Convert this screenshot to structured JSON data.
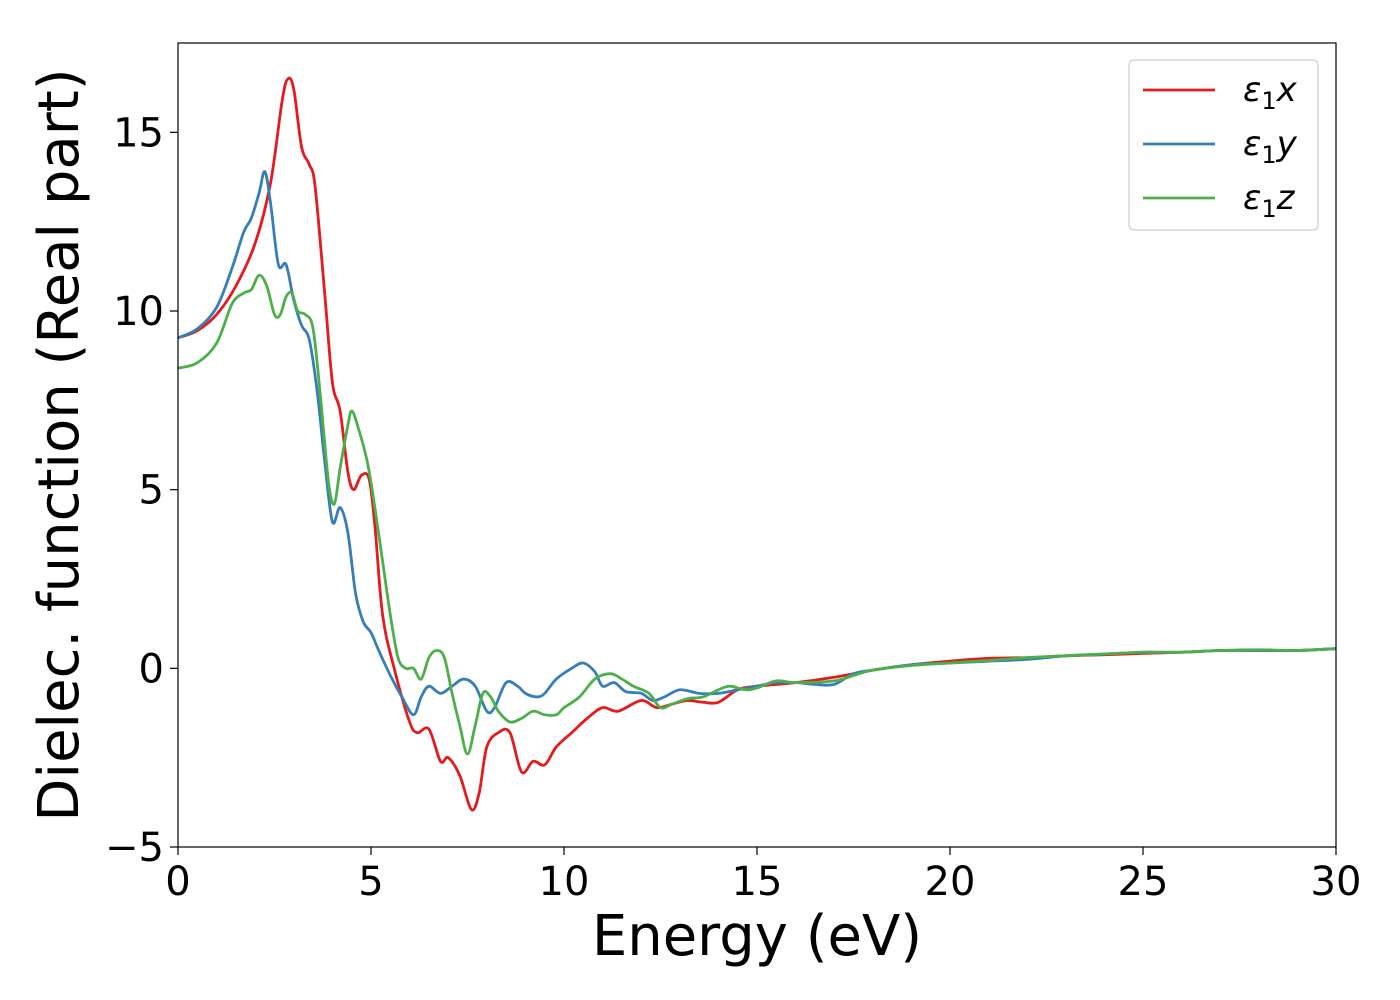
{
  "chart_data": {
    "type": "line",
    "xlabel": "Energy (eV)",
    "ylabel": "Dielec. function (Real part)",
    "xlim": [
      0,
      30
    ],
    "ylim": [
      -5,
      17.5
    ],
    "xticks": [
      0,
      5,
      10,
      15,
      20,
      25,
      30
    ],
    "xtick_labels": [
      "0",
      "5",
      "10",
      "15",
      "20",
      "25",
      "30"
    ],
    "yticks": [
      -5,
      0,
      5,
      10,
      15
    ],
    "ytick_labels": [
      "−5",
      "0",
      "5",
      "10",
      "15"
    ],
    "grid": false,
    "legend_position": "top-right",
    "series": [
      {
        "name": "ε1x",
        "legend_symbol": "ε",
        "legend_sub": "1",
        "legend_var": "x",
        "color": "#e41a1c",
        "points": [
          [
            0,
            9.25
          ],
          [
            0.5,
            9.45
          ],
          [
            1.0,
            9.9
          ],
          [
            1.5,
            10.7
          ],
          [
            2.0,
            11.9
          ],
          [
            2.4,
            13.6
          ],
          [
            2.7,
            15.9
          ],
          [
            2.85,
            16.5
          ],
          [
            3.0,
            16.2
          ],
          [
            3.2,
            14.6
          ],
          [
            3.4,
            14.1
          ],
          [
            3.55,
            13.5
          ],
          [
            3.8,
            10.5
          ],
          [
            4.0,
            8.0
          ],
          [
            4.2,
            7.2
          ],
          [
            4.4,
            5.5
          ],
          [
            4.55,
            5.0
          ],
          [
            4.75,
            5.4
          ],
          [
            4.95,
            5.3
          ],
          [
            5.1,
            4.0
          ],
          [
            5.3,
            1.5
          ],
          [
            5.6,
            0.0
          ],
          [
            6.0,
            -1.5
          ],
          [
            6.2,
            -1.8
          ],
          [
            6.5,
            -1.7
          ],
          [
            6.8,
            -2.6
          ],
          [
            7.0,
            -2.5
          ],
          [
            7.3,
            -3.0
          ],
          [
            7.6,
            -3.95
          ],
          [
            7.8,
            -3.5
          ],
          [
            8.0,
            -2.2
          ],
          [
            8.3,
            -1.8
          ],
          [
            8.6,
            -1.8
          ],
          [
            8.9,
            -2.9
          ],
          [
            9.2,
            -2.6
          ],
          [
            9.5,
            -2.7
          ],
          [
            9.8,
            -2.2
          ],
          [
            10.2,
            -1.8
          ],
          [
            10.6,
            -1.4
          ],
          [
            11.0,
            -1.1
          ],
          [
            11.4,
            -1.2
          ],
          [
            12.0,
            -0.9
          ],
          [
            12.4,
            -1.1
          ],
          [
            12.8,
            -1.0
          ],
          [
            13.2,
            -0.9
          ],
          [
            13.6,
            -0.95
          ],
          [
            14.0,
            -0.95
          ],
          [
            14.5,
            -0.6
          ],
          [
            15.0,
            -0.5
          ],
          [
            16.0,
            -0.4
          ],
          [
            17.0,
            -0.25
          ],
          [
            18.0,
            -0.05
          ],
          [
            19.0,
            0.1
          ],
          [
            20.0,
            0.2
          ],
          [
            21.0,
            0.28
          ],
          [
            22.0,
            0.3
          ],
          [
            23.0,
            0.35
          ],
          [
            24.0,
            0.38
          ],
          [
            25.0,
            0.42
          ],
          [
            26.0,
            0.45
          ],
          [
            27.0,
            0.5
          ],
          [
            28.0,
            0.5
          ],
          [
            29.0,
            0.5
          ],
          [
            30.0,
            0.55
          ]
        ]
      },
      {
        "name": "ε1y",
        "legend_symbol": "ε",
        "legend_sub": "1",
        "legend_var": "y",
        "color": "#377eb8",
        "points": [
          [
            0,
            9.25
          ],
          [
            0.5,
            9.5
          ],
          [
            1.0,
            10.1
          ],
          [
            1.4,
            11.2
          ],
          [
            1.7,
            12.2
          ],
          [
            1.9,
            12.6
          ],
          [
            2.1,
            13.3
          ],
          [
            2.25,
            13.9
          ],
          [
            2.4,
            13.0
          ],
          [
            2.6,
            11.3
          ],
          [
            2.8,
            11.3
          ],
          [
            3.0,
            10.3
          ],
          [
            3.2,
            9.6
          ],
          [
            3.4,
            9.2
          ],
          [
            3.6,
            7.8
          ],
          [
            3.8,
            5.8
          ],
          [
            4.0,
            4.1
          ],
          [
            4.2,
            4.5
          ],
          [
            4.4,
            3.8
          ],
          [
            4.6,
            2.1
          ],
          [
            4.8,
            1.3
          ],
          [
            5.0,
            1.0
          ],
          [
            5.2,
            0.5
          ],
          [
            5.5,
            -0.2
          ],
          [
            5.8,
            -0.8
          ],
          [
            6.1,
            -1.3
          ],
          [
            6.3,
            -0.8
          ],
          [
            6.5,
            -0.5
          ],
          [
            6.8,
            -0.7
          ],
          [
            7.1,
            -0.5
          ],
          [
            7.4,
            -0.3
          ],
          [
            7.7,
            -0.5
          ],
          [
            8.0,
            -1.2
          ],
          [
            8.2,
            -1.1
          ],
          [
            8.5,
            -0.4
          ],
          [
            8.8,
            -0.5
          ],
          [
            9.0,
            -0.7
          ],
          [
            9.3,
            -0.8
          ],
          [
            9.5,
            -0.7
          ],
          [
            9.8,
            -0.3
          ],
          [
            10.2,
            0.0
          ],
          [
            10.5,
            0.15
          ],
          [
            10.8,
            -0.1
          ],
          [
            11.0,
            -0.5
          ],
          [
            11.3,
            -0.4
          ],
          [
            11.6,
            -0.65
          ],
          [
            12.0,
            -0.7
          ],
          [
            12.3,
            -0.9
          ],
          [
            12.6,
            -0.8
          ],
          [
            13.0,
            -0.6
          ],
          [
            13.5,
            -0.7
          ],
          [
            14.0,
            -0.7
          ],
          [
            14.5,
            -0.6
          ],
          [
            15.0,
            -0.5
          ],
          [
            15.5,
            -0.4
          ],
          [
            16.0,
            -0.4
          ],
          [
            16.5,
            -0.45
          ],
          [
            17.0,
            -0.45
          ],
          [
            17.5,
            -0.15
          ],
          [
            18.0,
            -0.05
          ],
          [
            19.0,
            0.1
          ],
          [
            20.0,
            0.15
          ],
          [
            21.0,
            0.2
          ],
          [
            22.0,
            0.25
          ],
          [
            23.0,
            0.35
          ],
          [
            24.0,
            0.4
          ],
          [
            25.0,
            0.45
          ],
          [
            26.0,
            0.45
          ],
          [
            27.0,
            0.5
          ],
          [
            28.0,
            0.5
          ],
          [
            29.0,
            0.5
          ],
          [
            30.0,
            0.55
          ]
        ]
      },
      {
        "name": "ε1z",
        "legend_symbol": "ε",
        "legend_sub": "1",
        "legend_var": "z",
        "color": "#4daf4a",
        "points": [
          [
            0,
            8.4
          ],
          [
            0.5,
            8.55
          ],
          [
            1.0,
            9.1
          ],
          [
            1.4,
            10.2
          ],
          [
            1.7,
            10.5
          ],
          [
            1.9,
            10.6
          ],
          [
            2.1,
            11.0
          ],
          [
            2.3,
            10.7
          ],
          [
            2.5,
            9.9
          ],
          [
            2.65,
            9.9
          ],
          [
            2.8,
            10.4
          ],
          [
            2.95,
            10.5
          ],
          [
            3.1,
            10.0
          ],
          [
            3.3,
            9.9
          ],
          [
            3.5,
            9.5
          ],
          [
            3.7,
            7.5
          ],
          [
            3.9,
            5.2
          ],
          [
            4.05,
            4.6
          ],
          [
            4.2,
            5.6
          ],
          [
            4.4,
            6.8
          ],
          [
            4.5,
            7.2
          ],
          [
            4.65,
            6.8
          ],
          [
            4.9,
            5.8
          ],
          [
            5.1,
            4.5
          ],
          [
            5.3,
            3.0
          ],
          [
            5.5,
            1.5
          ],
          [
            5.7,
            0.3
          ],
          [
            5.9,
            0.0
          ],
          [
            6.1,
            0.0
          ],
          [
            6.3,
            -0.3
          ],
          [
            6.5,
            0.3
          ],
          [
            6.7,
            0.5
          ],
          [
            6.9,
            0.3
          ],
          [
            7.1,
            -0.7
          ],
          [
            7.3,
            -1.6
          ],
          [
            7.5,
            -2.4
          ],
          [
            7.7,
            -1.6
          ],
          [
            7.9,
            -0.7
          ],
          [
            8.1,
            -0.8
          ],
          [
            8.3,
            -1.2
          ],
          [
            8.6,
            -1.5
          ],
          [
            8.9,
            -1.4
          ],
          [
            9.2,
            -1.2
          ],
          [
            9.5,
            -1.3
          ],
          [
            9.8,
            -1.3
          ],
          [
            10.0,
            -1.1
          ],
          [
            10.4,
            -0.8
          ],
          [
            10.8,
            -0.3
          ],
          [
            11.2,
            -0.15
          ],
          [
            11.5,
            -0.3
          ],
          [
            11.8,
            -0.5
          ],
          [
            12.2,
            -0.7
          ],
          [
            12.5,
            -1.1
          ],
          [
            12.8,
            -1.0
          ],
          [
            13.2,
            -0.85
          ],
          [
            13.6,
            -0.8
          ],
          [
            14.0,
            -0.6
          ],
          [
            14.3,
            -0.5
          ],
          [
            14.7,
            -0.6
          ],
          [
            15.0,
            -0.55
          ],
          [
            15.5,
            -0.35
          ],
          [
            16.0,
            -0.4
          ],
          [
            17.0,
            -0.35
          ],
          [
            17.5,
            -0.2
          ],
          [
            18.0,
            -0.05
          ],
          [
            19.0,
            0.08
          ],
          [
            20.0,
            0.15
          ],
          [
            21.0,
            0.22
          ],
          [
            22.0,
            0.3
          ],
          [
            23.0,
            0.35
          ],
          [
            24.0,
            0.4
          ],
          [
            25.0,
            0.45
          ],
          [
            26.0,
            0.45
          ],
          [
            27.0,
            0.5
          ],
          [
            28.0,
            0.52
          ],
          [
            29.0,
            0.5
          ],
          [
            30.0,
            0.55
          ]
        ]
      }
    ]
  }
}
